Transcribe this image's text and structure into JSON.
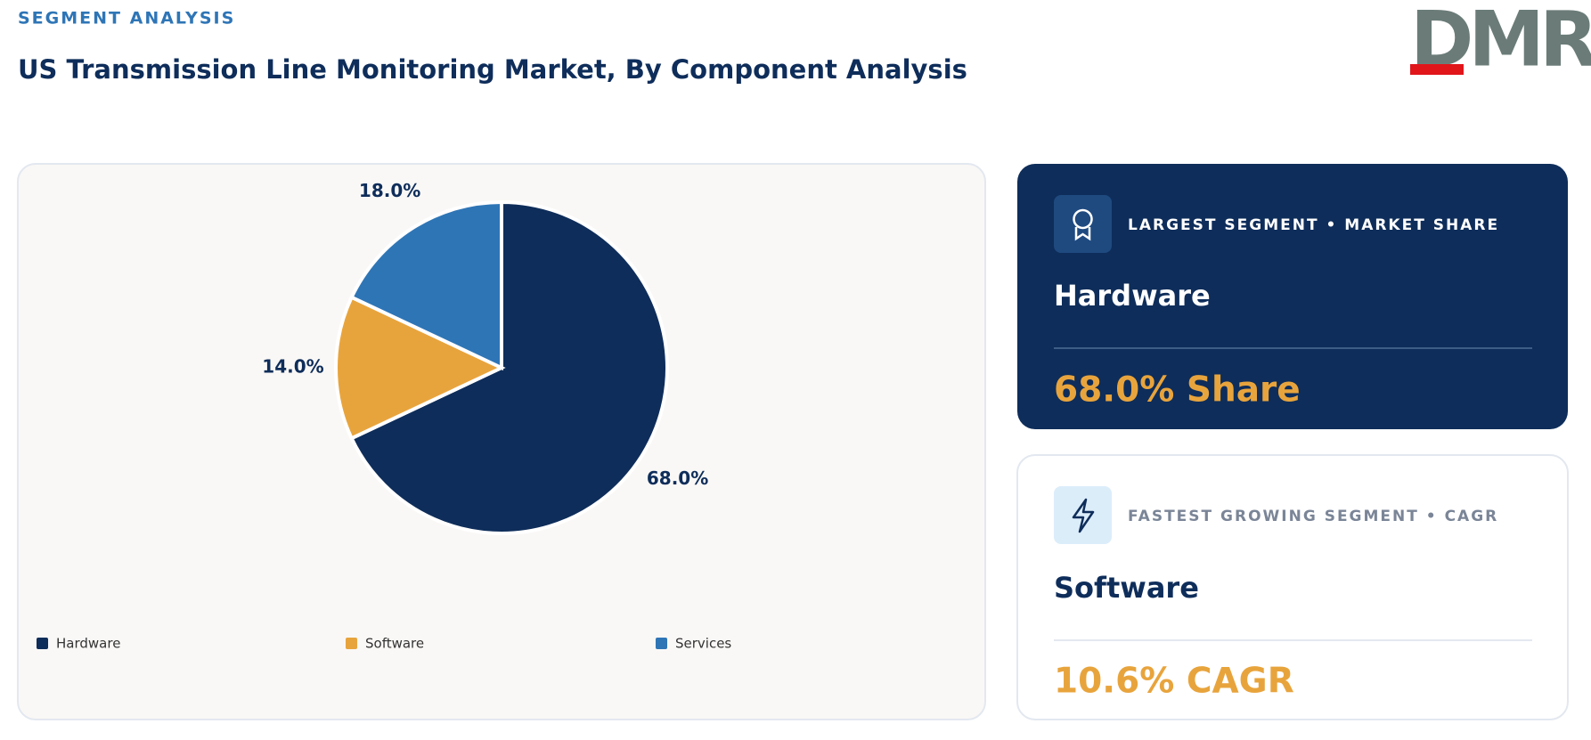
{
  "header": {
    "eyebrow": "SEGMENT ANALYSIS",
    "title": "US Transmission Line Monitoring Market, By Component Analysis",
    "logo": "DMR"
  },
  "chart_data": {
    "type": "pie",
    "categories": [
      "Hardware",
      "Software",
      "Services"
    ],
    "values": [
      68.0,
      14.0,
      18.0
    ],
    "value_labels": [
      "68.0%",
      "14.0%",
      "18.0%"
    ],
    "colors": [
      "#0e2d5a",
      "#e8a43c",
      "#2e75b6"
    ],
    "legend": "bottom"
  },
  "cards": [
    {
      "label": "LARGEST SEGMENT • MARKET SHARE",
      "segment": "Hardware",
      "metric": "68.0% Share"
    },
    {
      "label": "FASTEST GROWING SEGMENT • CAGR",
      "segment": "Software",
      "metric": "10.6% CAGR"
    }
  ]
}
